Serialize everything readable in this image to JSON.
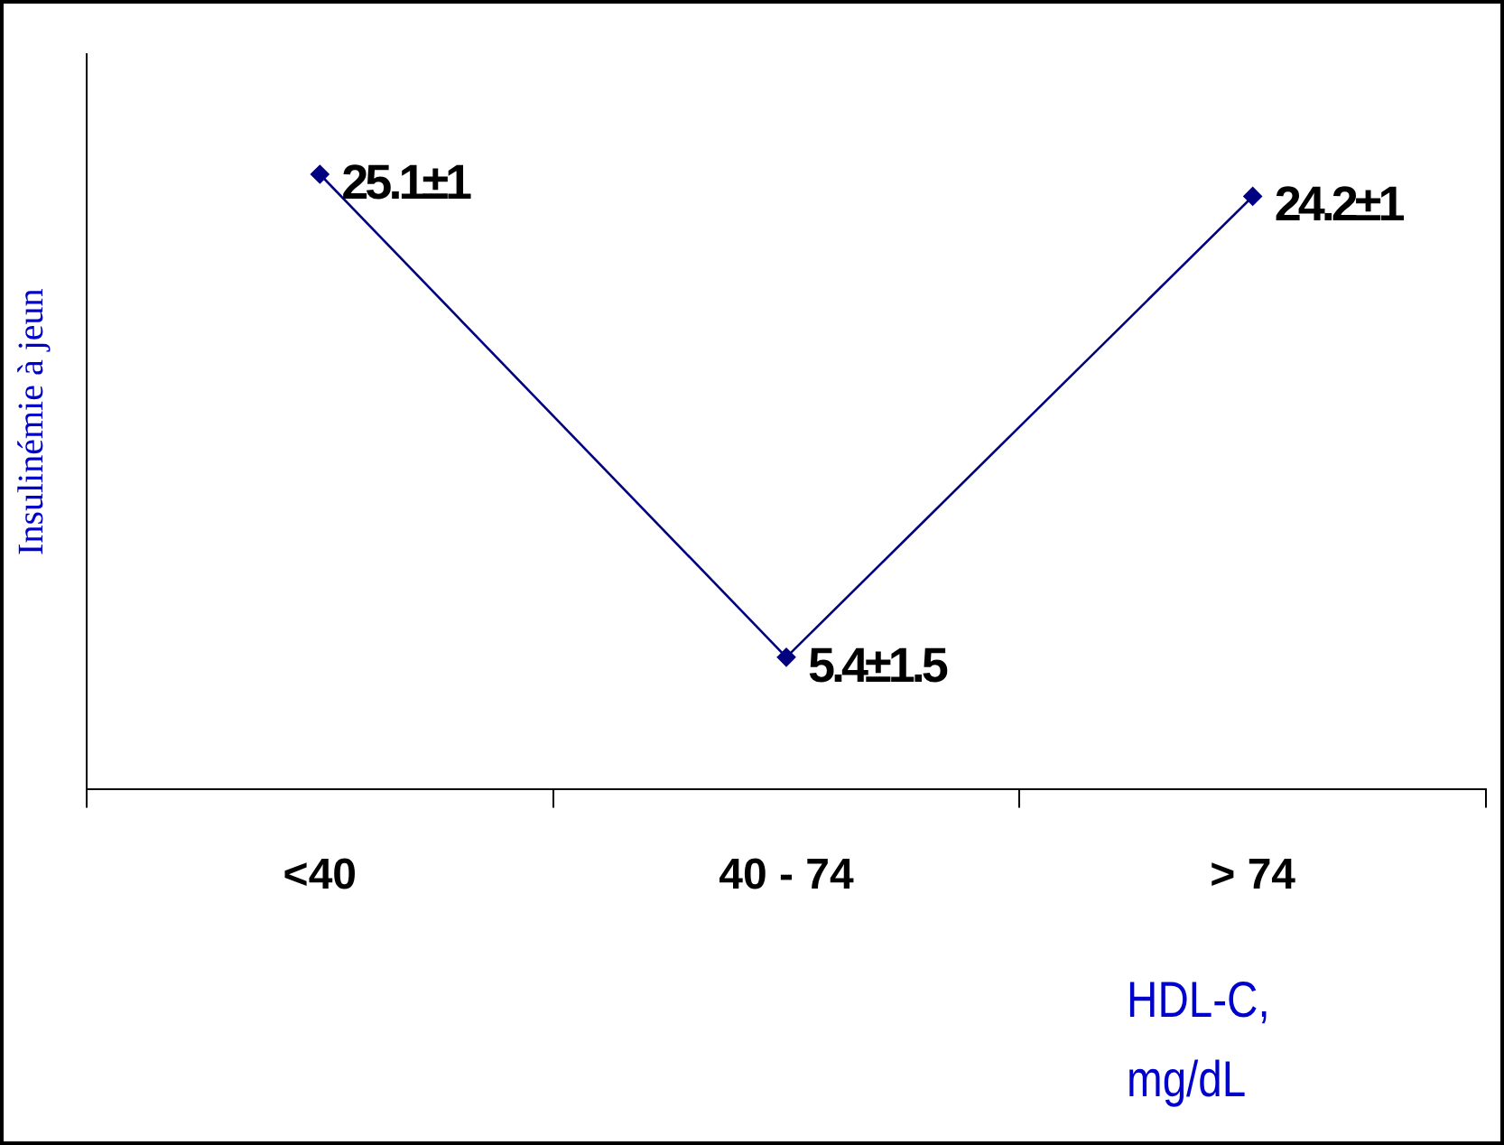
{
  "chart_data": {
    "type": "line",
    "categories": [
      "<40",
      "40 - 74",
      "> 74"
    ],
    "series": [
      {
        "color": "#000080",
        "values": [
          25.1,
          5.4,
          24.2
        ],
        "value_labels": [
          "25.1±1",
          "5.4±1.5",
          "24.2±1"
        ]
      }
    ],
    "ylim": [
      0,
      30
    ],
    "tick_labels": "x",
    "ylabel": "Insulinémie à jeun",
    "xlabel": "HDL-C, mg/dL",
    "marker": "diamond",
    "line_style": "solid",
    "grid": false,
    "legend": false
  }
}
